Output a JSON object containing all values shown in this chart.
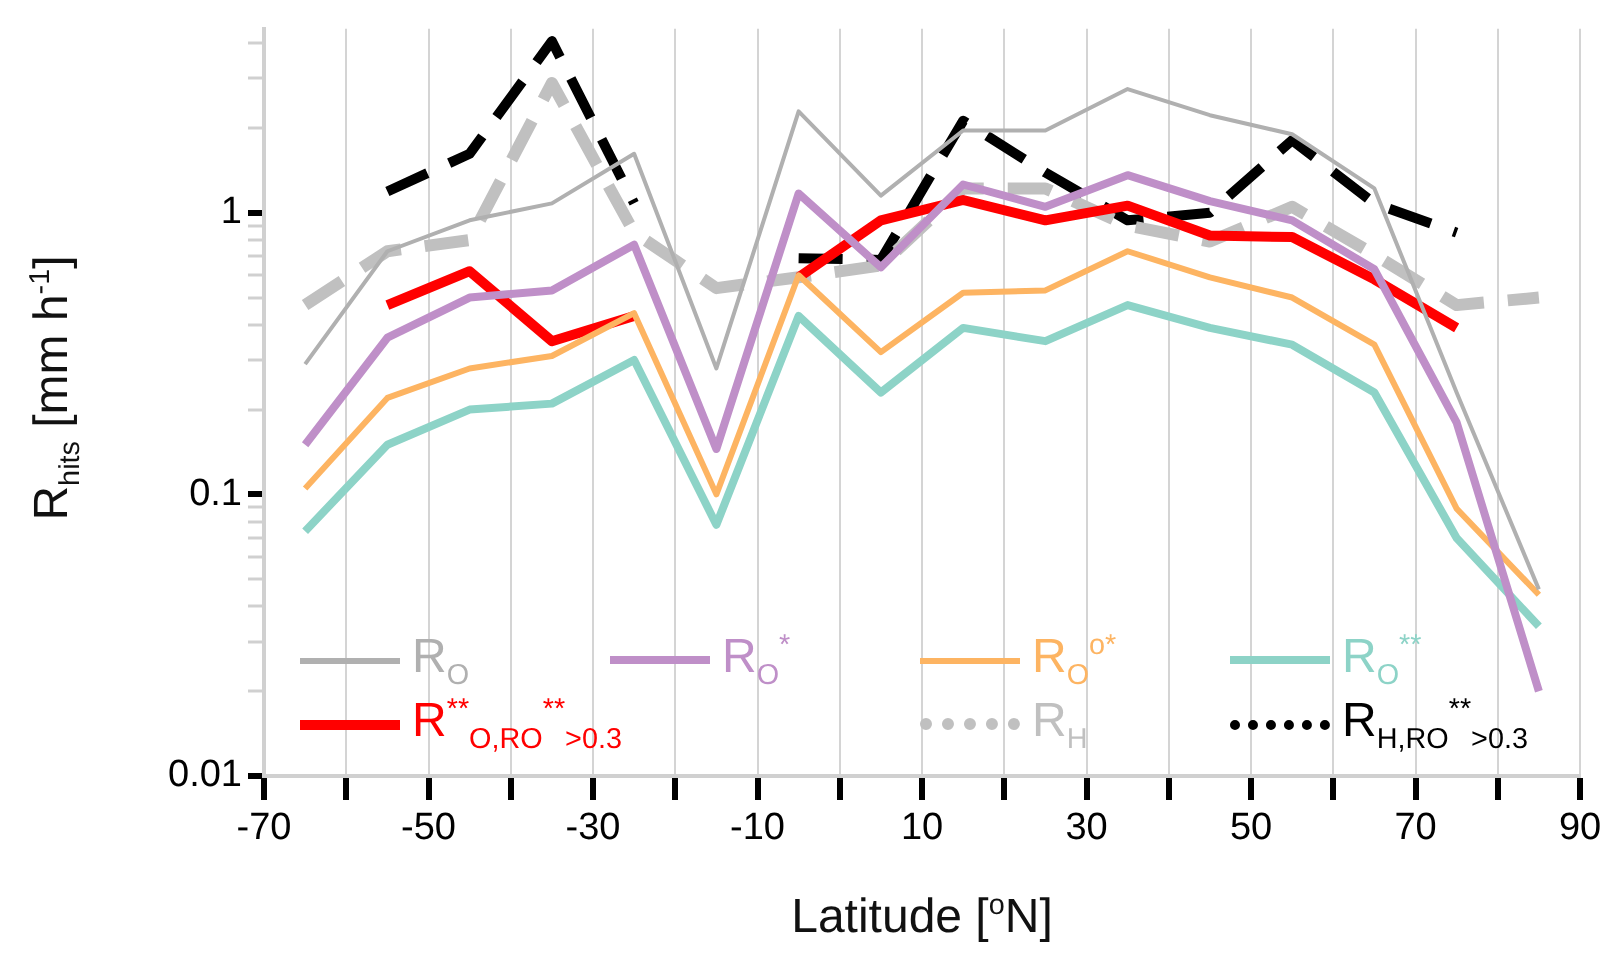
{
  "chart_data": {
    "type": "line",
    "xlabel": "Latitude [$^{o}$N]",
    "ylabel": "R$_{hits}$ [mm h$^{-1}$]",
    "x": [
      -65,
      -55,
      -45,
      -35,
      -25,
      -15,
      -5,
      5,
      15,
      25,
      35,
      45,
      55,
      65,
      75,
      85
    ],
    "log": "y",
    "grid": "x",
    "legend": "bottom left",
    "marker": "none",
    "xlim": [
      -70,
      90
    ],
    "xticks": [
      -70,
      {
        "value": -60,
        "label": null
      },
      -50,
      {
        "value": -40,
        "label": null
      },
      -30,
      {
        "value": -20,
        "label": null
      },
      -10,
      {
        "value": 0,
        "label": null
      },
      10,
      {
        "value": 20,
        "label": null
      },
      30,
      {
        "value": 40,
        "label": null
      },
      50,
      {
        "value": 60,
        "label": null
      },
      70,
      {
        "value": 80,
        "label": null
      },
      90
    ],
    "ylim": [
      0.01,
      4.5
    ],
    "yticks": [
      0.01,
      {
        "value": 0.02,
        "label": null
      },
      {
        "value": 0.03,
        "label": null
      },
      {
        "value": 0.04,
        "label": null
      },
      {
        "value": 0.05,
        "label": null
      },
      {
        "value": 0.06,
        "label": null
      },
      {
        "value": 0.07,
        "label": null
      },
      {
        "value": 0.08,
        "label": null
      },
      {
        "value": 0.09,
        "label": null
      },
      0.1,
      {
        "value": 0.2,
        "label": null
      },
      {
        "value": 0.3,
        "label": null
      },
      {
        "value": 0.4,
        "label": null
      },
      {
        "value": 0.5,
        "label": null
      },
      {
        "value": 0.6,
        "label": null
      },
      {
        "value": 0.7,
        "label": null
      },
      {
        "value": 0.8,
        "label": null
      },
      {
        "value": 0.9,
        "label": null
      },
      1,
      {
        "value": 2,
        "label": null
      },
      {
        "value": 3,
        "label": null
      },
      {
        "value": 4,
        "label": null
      }
    ],
    "series": [
      {
        "name": "R$_{O}$",
        "color": "#b0b0b0",
        "line_style": "solid",
        "values": [
          0.29,
          0.73,
          0.94,
          1.08,
          1.62,
          0.28,
          2.29,
          1.15,
          1.96,
          1.96,
          2.75,
          2.22,
          1.9,
          1.22,
          0.23,
          0.046
        ]
      },
      {
        "name": "R$_{O}$$^{*}$",
        "color": "#bf8fc8",
        "line_style": "solid",
        "values": [
          0.15,
          0.36,
          0.5,
          0.53,
          0.77,
          0.145,
          1.17,
          0.64,
          1.26,
          1.05,
          1.36,
          1.1,
          0.94,
          0.63,
          0.18,
          0.02
        ]
      },
      {
        "name": "R$_{O}$$^{o*}$",
        "color": "#fdb462",
        "line_style": "solid",
        "values": [
          0.105,
          0.22,
          0.28,
          0.31,
          0.44,
          0.1,
          0.6,
          0.32,
          0.52,
          0.53,
          0.73,
          0.59,
          0.5,
          0.34,
          0.089,
          0.044
        ]
      },
      {
        "name": "R$_{O}$$^{**}$",
        "color": "#8dd3c7",
        "line_style": "solid",
        "values": [
          0.074,
          0.15,
          0.2,
          0.21,
          0.3,
          0.078,
          0.43,
          0.23,
          0.39,
          0.35,
          0.47,
          0.39,
          0.34,
          0.23,
          0.07,
          0.034
        ]
      },
      {
        "name": "R$^{**}$$_{O,R}$$_{O}$$^{**}$$_{>0.3}$",
        "color": "#ff0000",
        "line_style": "solid",
        "values": [
          null,
          0.47,
          0.62,
          0.35,
          0.43,
          null,
          0.59,
          0.94,
          1.11,
          0.94,
          1.06,
          0.83,
          0.82,
          0.58,
          0.39,
          null
        ]
      },
      {
        "name": "R$_{H}$",
        "color": "#c0c0c0",
        "line_style": "dashed",
        "values": [
          0.47,
          0.73,
          0.8,
          2.89,
          0.85,
          0.54,
          0.59,
          0.65,
          1.22,
          1.22,
          0.9,
          0.79,
          1.05,
          0.71,
          0.47,
          0.5
        ]
      },
      {
        "name": "R$_{H,R}$$_{O}$$^{**}$$_{>0.3}$",
        "color": "#000000",
        "line_style": "dashed",
        "values": [
          null,
          1.19,
          1.62,
          4.07,
          1.08,
          null,
          0.69,
          0.68,
          2.12,
          1.39,
          0.94,
          1.0,
          1.81,
          1.08,
          0.85,
          null
        ]
      }
    ]
  }
}
